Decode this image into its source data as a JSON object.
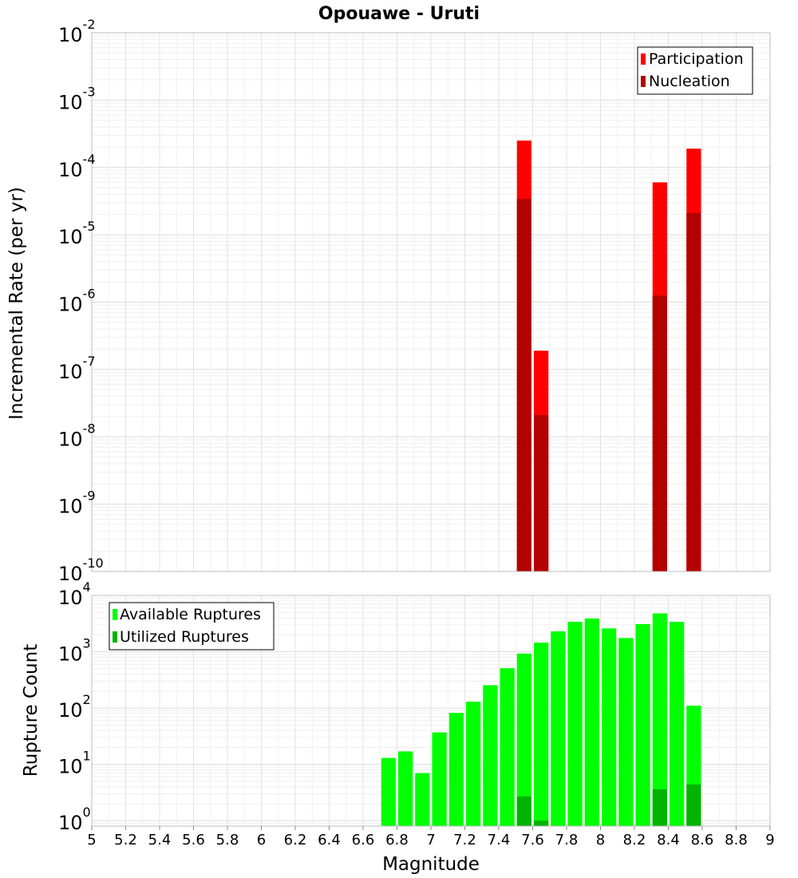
{
  "chart_data": [
    {
      "type": "bar",
      "title": "Opouawe - Uruti",
      "ylabel": "Incremental Rate (per yr)",
      "xlabel": "",
      "xlim": [
        5,
        9
      ],
      "ylim": [
        1e-10,
        0.01
      ],
      "y_scale": "log",
      "y_tick_exponents": [
        "-10",
        "-9",
        "-8",
        "-7",
        "-6",
        "-5",
        "-4",
        "-3",
        "-2"
      ],
      "legend": {
        "placement": "top-right",
        "entries": [
          "Participation",
          "Nucleation"
        ]
      },
      "colors": {
        "Participation": "#ff0000",
        "Nucleation": "#b30000"
      },
      "x": [
        7.55,
        7.65,
        8.35,
        8.55
      ],
      "series": [
        {
          "name": "Participation",
          "values": [
            0.00025,
            1.9e-07,
            6e-05,
            0.00019
          ]
        },
        {
          "name": "Nucleation",
          "values": [
            3.4e-05,
            2.1e-08,
            1.25e-06,
            2.1e-05
          ]
        }
      ]
    },
    {
      "type": "bar",
      "ylabel": "Rupture Count",
      "xlabel": "Magnitude",
      "xlim": [
        5,
        9
      ],
      "x_ticks": [
        "5",
        "5.2",
        "5.4",
        "5.6",
        "5.8",
        "6",
        "6.2",
        "6.4",
        "6.6",
        "6.8",
        "7",
        "7.2",
        "7.4",
        "7.6",
        "7.8",
        "8",
        "8.2",
        "8.4",
        "8.6",
        "8.8",
        "9"
      ],
      "ylim": [
        0.8,
        10000.0
      ],
      "y_scale": "log",
      "y_tick_exponents": [
        "0",
        "1",
        "2",
        "3",
        "4"
      ],
      "legend": {
        "placement": "top-left",
        "entries": [
          "Available Ruptures",
          "Utilized Ruptures"
        ]
      },
      "colors": {
        "Available Ruptures": "#00ff00",
        "Utilized Ruptures": "#00b300"
      },
      "x": [
        6.75,
        6.85,
        6.95,
        7.05,
        7.15,
        7.25,
        7.35,
        7.45,
        7.55,
        7.65,
        7.75,
        7.85,
        7.95,
        8.05,
        8.15,
        8.25,
        8.35,
        8.45,
        8.55
      ],
      "series": [
        {
          "name": "Available Ruptures",
          "values": [
            13,
            17,
            7,
            37,
            82,
            130,
            255,
            510,
            930,
            1450,
            2300,
            3400,
            3900,
            2600,
            1750,
            3100,
            4800,
            3400,
            110
          ]
        },
        {
          "name": "Utilized Ruptures",
          "values": [
            0,
            0,
            0,
            0,
            0,
            0,
            0,
            0,
            2.7,
            1.0,
            0,
            0,
            0,
            0,
            0,
            0,
            3.6,
            0,
            4.4
          ]
        }
      ]
    }
  ]
}
